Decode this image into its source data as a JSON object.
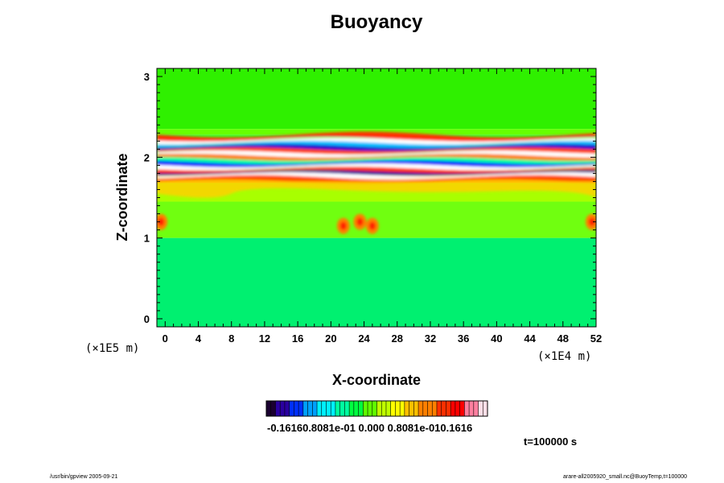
{
  "chart_data": {
    "type": "heatmap",
    "title": "Buoyancy",
    "xlabel": "X-coordinate",
    "ylabel": "Z-coordinate",
    "x_unit": "(×1E4 m)",
    "y_unit": "(×1E5 m)",
    "xlim": [
      -1,
      52
    ],
    "ylim": [
      -0.1,
      3.1
    ],
    "x_ticks": [
      "0",
      "4",
      "8",
      "12",
      "16",
      "20",
      "24",
      "28",
      "32",
      "36",
      "40",
      "44",
      "48",
      "52"
    ],
    "y_ticks": [
      "0",
      "1",
      "2",
      "3"
    ],
    "colorbar": {
      "range": [
        -0.1616,
        0.1616
      ],
      "label_text": "-0.16160.8081e-01 0.000 0.8081e-010.1616",
      "colors": [
        "#1a0030",
        "#2a00a0",
        "#0030ff",
        "#00a0ff",
        "#00f0ff",
        "#00ffa0",
        "#00ff40",
        "#60ff00",
        "#c0ff00",
        "#ffff00",
        "#ffc000",
        "#ff8000",
        "#ff3000",
        "#ff0000",
        "#ff80a0",
        "#ffe0e8"
      ]
    },
    "annotation": "t=100000 s"
  },
  "footer": {
    "left": "/usr/bin/gpview 2005-09-21",
    "right": "arare-all2005920_small.nc@BuoyTemp,t=100000"
  }
}
